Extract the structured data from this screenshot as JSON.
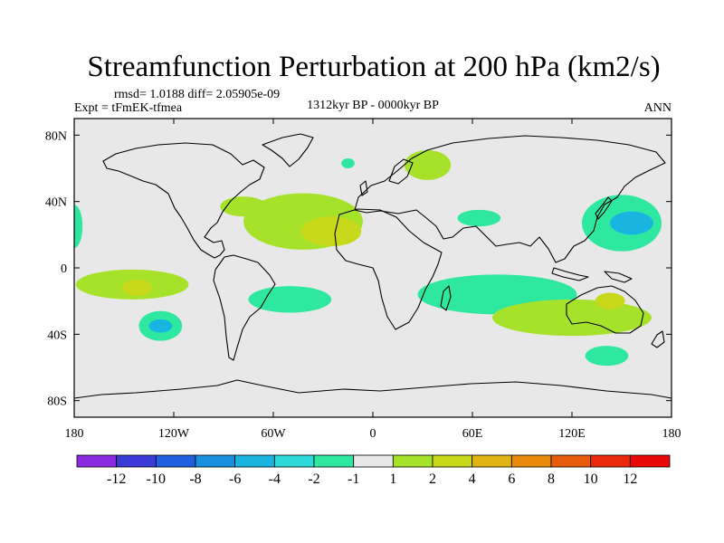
{
  "chart_data": {
    "type": "heatmap",
    "title": "Streamfunction Perturbation at 200 hPa (km2/s)",
    "stats": "rmsd= 1.0188  diff= 2.05905e-09",
    "left_label": "Expt = tFmEK-tfmea",
    "center_label": "1312kyr BP - 0000kyr BP",
    "right_label": "ANN",
    "x_ticks": [
      {
        "value": -180,
        "label": "180"
      },
      {
        "value": -120,
        "label": "120W"
      },
      {
        "value": -60,
        "label": "60W"
      },
      {
        "value": 0,
        "label": "0"
      },
      {
        "value": 60,
        "label": "60E"
      },
      {
        "value": 120,
        "label": "120E"
      },
      {
        "value": 180,
        "label": "180"
      }
    ],
    "y_ticks": [
      {
        "value": 80,
        "label": "80N"
      },
      {
        "value": 40,
        "label": "40N"
      },
      {
        "value": 0,
        "label": "0"
      },
      {
        "value": -40,
        "label": "40S"
      },
      {
        "value": -80,
        "label": "80S"
      }
    ],
    "xlim": [
      -180,
      180
    ],
    "ylim": [
      -90,
      90
    ],
    "colorbar": {
      "labels": [
        "-12",
        "-10",
        "-8",
        "-6",
        "-4",
        "-2",
        "-1",
        "1",
        "2",
        "4",
        "6",
        "8",
        "10",
        "12"
      ],
      "colors": [
        "#8a2be2",
        "#3a3ad6",
        "#1f5fe0",
        "#1a8fe0",
        "#19b4e0",
        "#2fd8d8",
        "#2ee8a0",
        "#e8e8e8",
        "#a6e22a",
        "#c8d81a",
        "#e0b412",
        "#e88a0e",
        "#e85a0c",
        "#e82a0a",
        "#e80808"
      ]
    },
    "regions": [
      {
        "name": "north-atlantic-positive",
        "lon": -42,
        "lat": 28,
        "rlon": 36,
        "rlat": 17,
        "level": "2"
      },
      {
        "name": "north-atlantic-core",
        "lon": -25,
        "lat": 22,
        "rlon": 18,
        "rlat": 9,
        "level": "4"
      },
      {
        "name": "west-atlantic-arm",
        "lon": -78,
        "lat": 37,
        "rlon": 14,
        "rlat": 6,
        "level": "2"
      },
      {
        "name": "greenland-small",
        "lon": -15,
        "lat": 63,
        "rlon": 4,
        "rlat": 3,
        "level": "-2"
      },
      {
        "name": "europe-positive",
        "lon": 33,
        "lat": 62,
        "rlon": 14,
        "rlat": 9,
        "level": "2"
      },
      {
        "name": "arabia-negative",
        "lon": 64,
        "lat": 30,
        "rlon": 13,
        "rlat": 5,
        "level": "-2"
      },
      {
        "name": "nw-pacific-negative",
        "lon": 150,
        "lat": 27,
        "rlon": 24,
        "rlat": 17,
        "level": "-2"
      },
      {
        "name": "nw-pacific-core",
        "lon": 156,
        "lat": 27,
        "rlon": 13,
        "rlat": 7,
        "level": "-4"
      },
      {
        "name": "west-edge-negative",
        "lon": -180,
        "lat": 25,
        "rlon": 5,
        "rlat": 13,
        "level": "-2"
      },
      {
        "name": "east-pacific-positive",
        "lon": -145,
        "lat": -10,
        "rlon": 34,
        "rlat": 9,
        "level": "2"
      },
      {
        "name": "east-pacific-core",
        "lon": -142,
        "lat": -12,
        "rlon": 9,
        "rlat": 5,
        "level": "4"
      },
      {
        "name": "south-pacific-negative",
        "lon": -128,
        "lat": -35,
        "rlon": 13,
        "rlat": 9,
        "level": "-2"
      },
      {
        "name": "south-pacific-core",
        "lon": -128,
        "lat": -35,
        "rlon": 7,
        "rlat": 4,
        "level": "-4"
      },
      {
        "name": "south-atlantic-negative",
        "lon": -50,
        "lat": -19,
        "rlon": 25,
        "rlat": 8,
        "level": "-2"
      },
      {
        "name": "indian-ocean-negative",
        "lon": 75,
        "lat": -16,
        "rlon": 48,
        "rlat": 12,
        "level": "-2"
      },
      {
        "name": "australia-positive",
        "lon": 120,
        "lat": -30,
        "rlon": 48,
        "rlat": 11,
        "level": "2"
      },
      {
        "name": "australia-core",
        "lon": 143,
        "lat": -20,
        "rlon": 9,
        "rlat": 5,
        "level": "4"
      },
      {
        "name": "southern-ocean-negative",
        "lon": 141,
        "lat": -53,
        "rlon": 13,
        "rlat": 6,
        "level": "-2"
      }
    ]
  }
}
